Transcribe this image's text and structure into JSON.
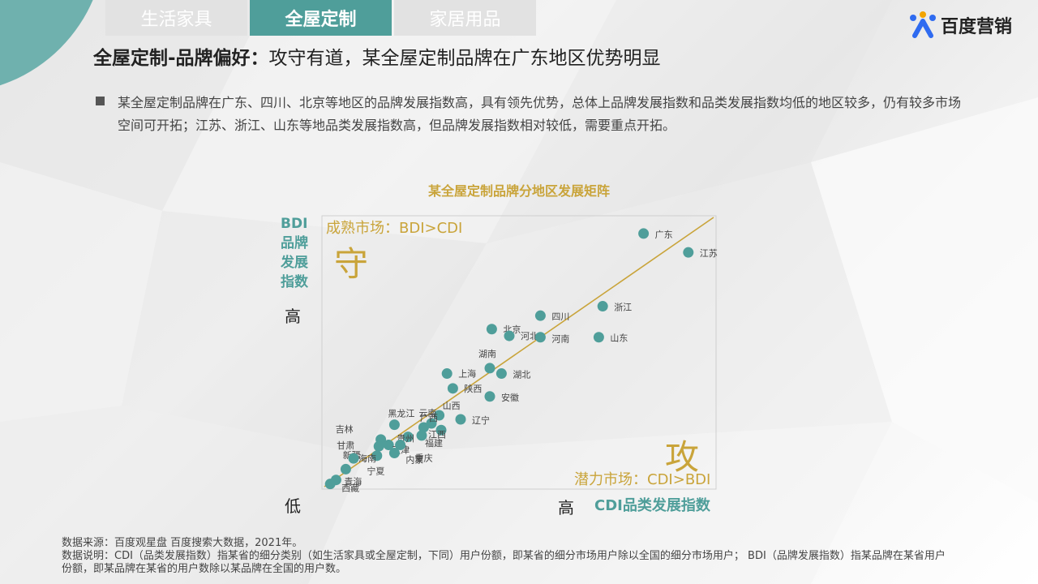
{
  "tabs": [
    {
      "label": "生活家具"
    },
    {
      "label": "全屋定制"
    },
    {
      "label": "家居用品"
    }
  ],
  "logo": {
    "text": "百度营销"
  },
  "heading": {
    "bold_part": "全屋定制-品牌偏好：",
    "rest": "攻守有道，某全屋定制品牌在广东地区优势明显"
  },
  "bullet": {
    "text": "某全屋定制品牌在广东、四川、北京等地区的品牌发展指数高，具有领先优势，总体上品牌发展指数和品类发展指数均低的地区较多，仍有较多市场空间可开拓；江苏、浙江、山东等地品类发展指数高，但品牌发展指数相对较低，需要重点开拓。"
  },
  "chart_data": {
    "type": "scatter",
    "title": "某全屋定制品牌分地区发展矩阵",
    "xlabel": "CDI品类发展指数",
    "ylabel": "BDI品牌发展指数",
    "x_low": "低",
    "x_high": "高",
    "y_high": "高",
    "xlim": [
      0,
      100
    ],
    "ylim": [
      0,
      100
    ],
    "quadrants": {
      "upper": {
        "label": "成熟市场：BDI>CDI",
        "word": "守"
      },
      "lower": {
        "label": "潜力市场：CDI>BDI",
        "word": "攻"
      }
    },
    "color": "#4f9e9a",
    "line_color": "#c9a43a",
    "points": [
      {
        "name": "广东",
        "x": 82,
        "y": 94
      },
      {
        "name": "江苏",
        "x": 93.5,
        "y": 87
      },
      {
        "name": "浙江",
        "x": 71.5,
        "y": 67
      },
      {
        "name": "四川",
        "x": 55.5,
        "y": 63.5
      },
      {
        "name": "山东",
        "x": 70.5,
        "y": 55.5
      },
      {
        "name": "北京",
        "x": 43,
        "y": 58.5
      },
      {
        "name": "河北",
        "x": 47.5,
        "y": 56
      },
      {
        "name": "河南",
        "x": 55.5,
        "y": 55.5
      },
      {
        "name": "湖南",
        "x": 42.5,
        "y": 44
      },
      {
        "name": "上海",
        "x": 31.5,
        "y": 42
      },
      {
        "name": "湖北",
        "x": 45.5,
        "y": 42
      },
      {
        "name": "陕西",
        "x": 33,
        "y": 36.5
      },
      {
        "name": "安徽",
        "x": 42.5,
        "y": 33.5
      },
      {
        "name": "山西",
        "x": 29.5,
        "y": 26.5
      },
      {
        "name": "辽宁",
        "x": 35,
        "y": 25
      },
      {
        "name": "云南",
        "x": 25.5,
        "y": 22
      },
      {
        "name": "广西",
        "x": 27.5,
        "y": 23.5
      },
      {
        "name": "江西",
        "x": 30,
        "y": 21
      },
      {
        "name": "黑龙江",
        "x": 18,
        "y": 23
      },
      {
        "name": "福建",
        "x": 25,
        "y": 19
      },
      {
        "name": "贵州",
        "x": 21.5,
        "y": 18.5
      },
      {
        "name": "吉林",
        "x": 14.5,
        "y": 17.5
      },
      {
        "name": "天津",
        "x": 16.5,
        "y": 15.5
      },
      {
        "name": "重庆",
        "x": 19.5,
        "y": 15.5
      },
      {
        "name": "甘肃",
        "x": 14,
        "y": 15
      },
      {
        "name": "内蒙",
        "x": 18,
        "y": 12.5
      },
      {
        "name": "新疆",
        "x": 13.5,
        "y": 11.5
      },
      {
        "name": "海南",
        "x": 7.5,
        "y": 10.5
      },
      {
        "name": "宁夏",
        "x": 5.5,
        "y": 6.5
      },
      {
        "name": "青海",
        "x": 3,
        "y": 2.5
      },
      {
        "name": "西藏",
        "x": 1.5,
        "y": 1
      }
    ]
  },
  "footnote": {
    "line1": "数据来源：百度观星盘 百度搜索大数据，2021年。",
    "line2": "数据说明：CDI（品类发展指数）指某省的细分类别（如生活家具或全屋定制，下同）用户份额，即某省的细分市场用户除以全国的细分市场用户； BDI（品牌发展指数）指某品牌在某省用户份额，即某品牌在某省的用户数除以某品牌在全国的用户数。"
  }
}
